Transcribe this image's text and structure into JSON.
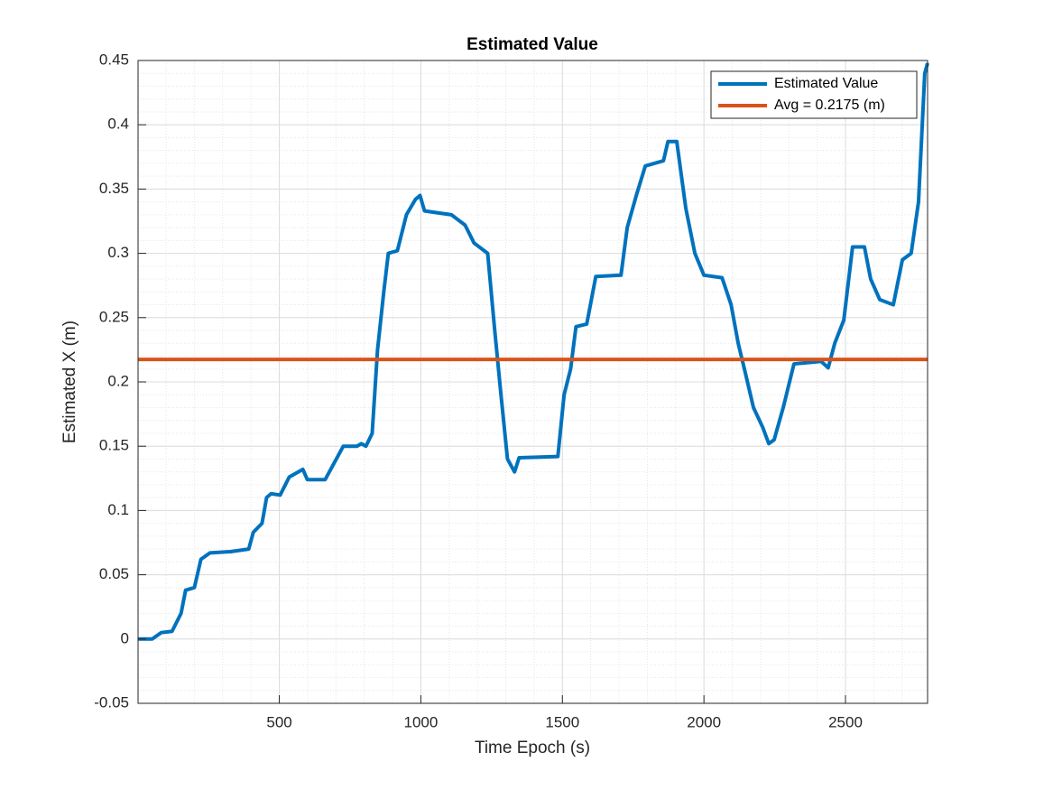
{
  "chart_data": {
    "type": "line",
    "title": "Estimated Value",
    "x_label": "Time Epoch (s)",
    "y_label": "Estimated X (m)",
    "xlim": [
      1,
      2790
    ],
    "ylim": [
      -0.05,
      0.45
    ],
    "xticks": [
      500,
      1000,
      1500,
      2000,
      2500
    ],
    "yticks": [
      -0.05,
      0,
      0.05,
      0.1,
      0.15,
      0.2,
      0.25,
      0.3,
      0.35,
      0.4,
      0.45
    ],
    "grid": true,
    "minor_grid": true,
    "legend_position": "top-right",
    "series": [
      {
        "name": "Estimated Value",
        "color": "#0072bd",
        "x": [
          1,
          51,
          83,
          121,
          153,
          169,
          200,
          223,
          255,
          328,
          392,
          408,
          439,
          455,
          471,
          503,
          535,
          583,
          599,
          662,
          694,
          726,
          774,
          790,
          806,
          828,
          847,
          869,
          885,
          917,
          949,
          981,
          997,
          1013,
          1108,
          1156,
          1188,
          1236,
          1261,
          1283,
          1306,
          1331,
          1347,
          1484,
          1506,
          1529,
          1548,
          1586,
          1618,
          1707,
          1729,
          1761,
          1793,
          1857,
          1873,
          1904,
          1936,
          1968,
          2000,
          2064,
          2096,
          2121,
          2143,
          2175,
          2207,
          2229,
          2248,
          2280,
          2318,
          2414,
          2439,
          2462,
          2494,
          2525,
          2567,
          2589,
          2621,
          2669,
          2701,
          2732,
          2758,
          2780,
          2790
        ],
        "values": [
          0,
          0,
          0.005,
          0.006,
          0.02,
          0.038,
          0.04,
          0.062,
          0.067,
          0.068,
          0.07,
          0.083,
          0.09,
          0.11,
          0.113,
          0.112,
          0.126,
          0.132,
          0.124,
          0.124,
          0.137,
          0.15,
          0.15,
          0.152,
          0.15,
          0.16,
          0.225,
          0.27,
          0.3,
          0.302,
          0.33,
          0.342,
          0.345,
          0.333,
          0.33,
          0.322,
          0.308,
          0.3,
          0.24,
          0.19,
          0.14,
          0.13,
          0.141,
          0.142,
          0.19,
          0.21,
          0.243,
          0.245,
          0.282,
          0.283,
          0.32,
          0.345,
          0.368,
          0.372,
          0.387,
          0.387,
          0.335,
          0.3,
          0.283,
          0.281,
          0.26,
          0.23,
          0.21,
          0.18,
          0.165,
          0.152,
          0.155,
          0.18,
          0.214,
          0.216,
          0.211,
          0.23,
          0.248,
          0.305,
          0.305,
          0.28,
          0.264,
          0.26,
          0.295,
          0.3,
          0.34,
          0.44,
          0.448
        ]
      },
      {
        "name": "Avg = 0.2175 (m)",
        "color": "#d95319",
        "x": [
          1,
          2790
        ],
        "values": [
          0.2175,
          0.2175
        ]
      }
    ]
  }
}
